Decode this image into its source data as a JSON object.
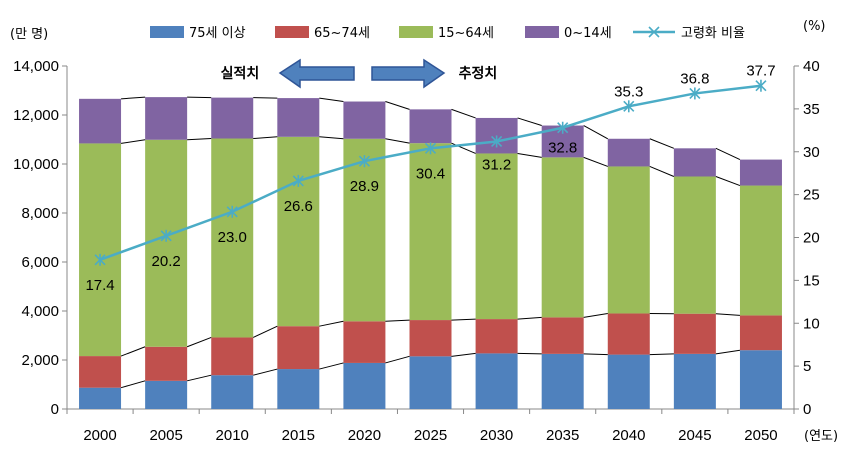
{
  "chart_data": {
    "type": "bar",
    "stacked": true,
    "categories": [
      "2000",
      "2005",
      "2010",
      "2015",
      "2020",
      "2025",
      "2030",
      "2035",
      "2040",
      "2045",
      "2050"
    ],
    "series": [
      {
        "name": "75세 이상",
        "color": "#4F81BD",
        "values": [
          870,
          1150,
          1380,
          1630,
          1880,
          2150,
          2270,
          2250,
          2220,
          2250,
          2400
        ]
      },
      {
        "name": "65~74세",
        "color": "#C0504D",
        "values": [
          1290,
          1390,
          1540,
          1750,
          1700,
          1480,
          1400,
          1490,
          1680,
          1640,
          1420
        ]
      },
      {
        "name": "15~64세",
        "color": "#9BBB59",
        "values": [
          8680,
          8450,
          8120,
          7730,
          7450,
          7220,
          6760,
          6530,
          6000,
          5600,
          5300
        ]
      },
      {
        "name": "0~14세",
        "color": "#8064A2",
        "values": [
          1820,
          1740,
          1670,
          1580,
          1520,
          1380,
          1450,
          1300,
          1130,
          1150,
          1060
        ]
      }
    ],
    "line_series": {
      "name": "고령화 비율",
      "color": "#4BACC6",
      "axis": "right",
      "values": [
        17.4,
        20.2,
        23.0,
        26.6,
        28.9,
        30.4,
        31.2,
        32.8,
        35.3,
        36.8,
        37.7
      ],
      "labels": [
        "17.4",
        "20.2",
        "23.0",
        "26.6",
        "28.9",
        "30.4",
        "31.2",
        "32.8",
        "35.3",
        "36.8",
        "37.7"
      ]
    },
    "y_left": {
      "unit": "(만 명)",
      "min": 0,
      "max": 14000,
      "ticks": [
        "0",
        "2,000",
        "4,000",
        "6,000",
        "8,000",
        "10,000",
        "12,000",
        "14,000"
      ]
    },
    "y_right": {
      "unit": "(%)",
      "min": 0,
      "max": 40,
      "ticks": [
        "0",
        "5",
        "10",
        "15",
        "20",
        "25",
        "30",
        "35",
        "40"
      ]
    },
    "x_unit": "(연도)",
    "annotations": {
      "left_arrow": "실적치",
      "right_arrow": "추정치"
    },
    "grid": false,
    "legend_position": "top"
  }
}
